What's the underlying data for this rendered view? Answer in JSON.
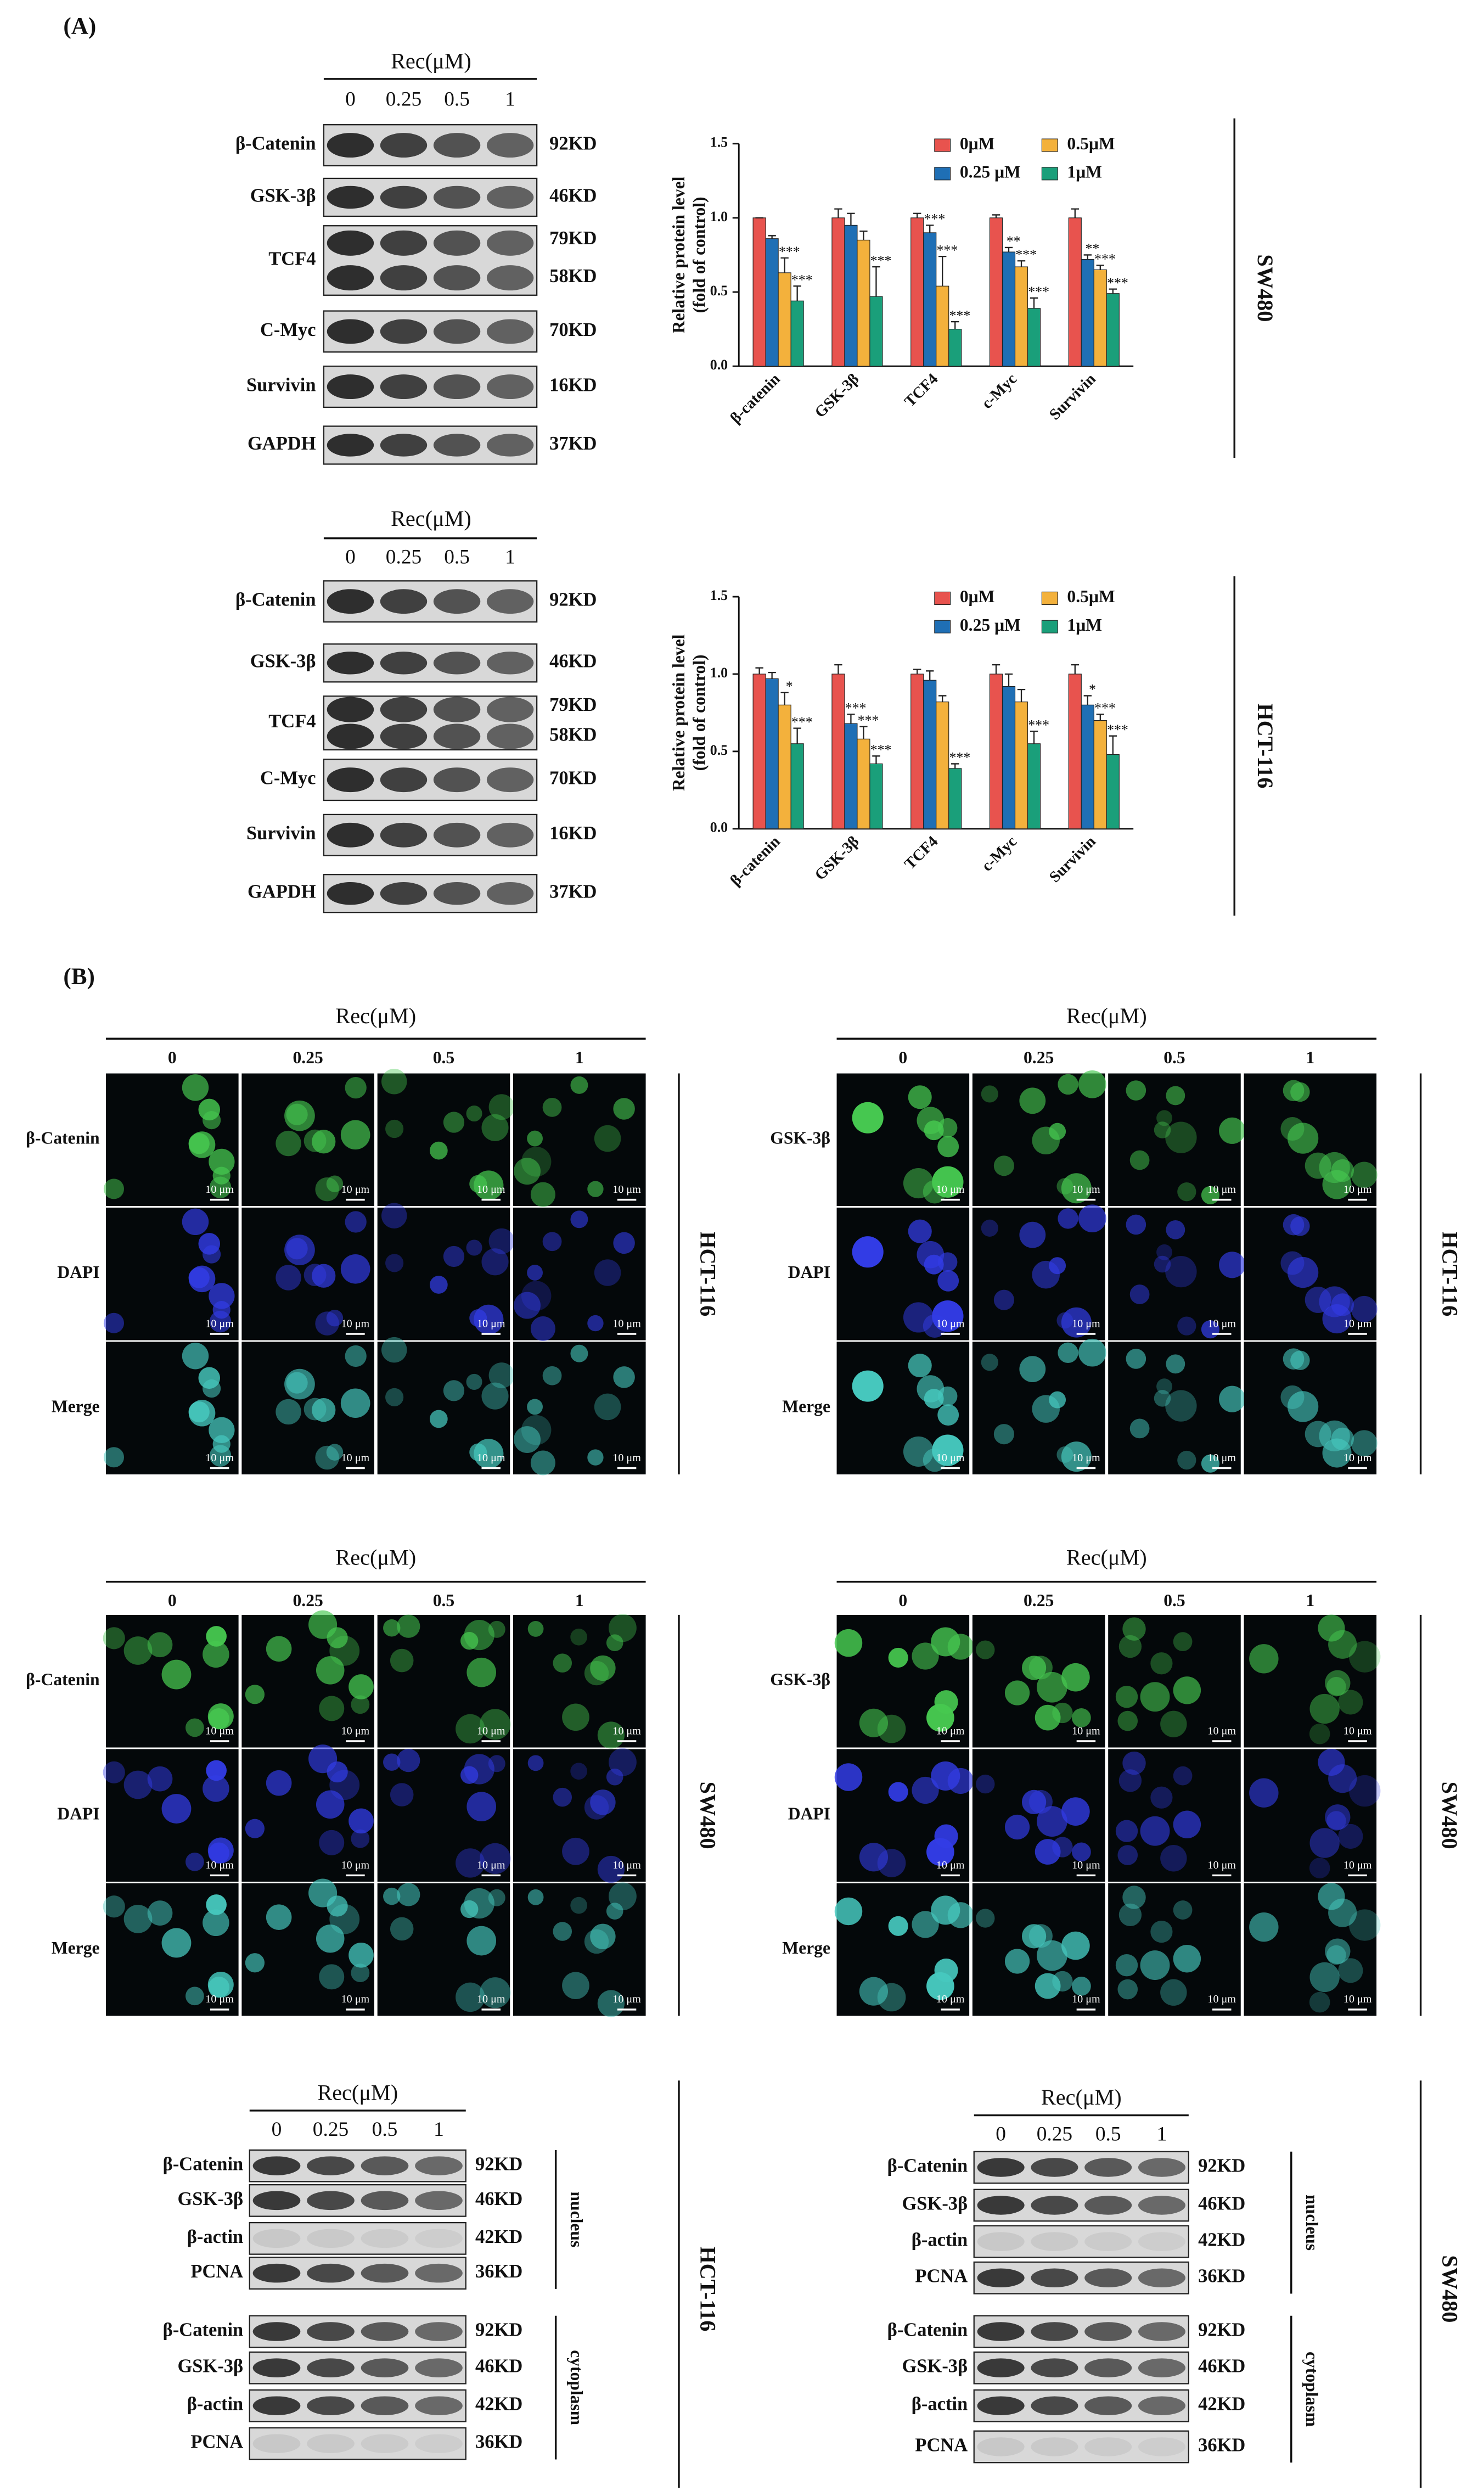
{
  "panel_labels": {
    "a": "(A)",
    "b": "(B)"
  },
  "panel_a": {
    "blots": [
      {
        "cell_line": "SW480",
        "treatment": "Rec(μM)",
        "doses": [
          "0",
          "0.25",
          "0.5",
          "1"
        ],
        "rows": [
          {
            "protein": "β-Catenin",
            "sizes": [
              "92KD"
            ]
          },
          {
            "protein": "GSK-3β",
            "sizes": [
              "46KD"
            ]
          },
          {
            "protein": "TCF4",
            "sizes": [
              "79KD",
              "58KD"
            ]
          },
          {
            "protein": "C-Myc",
            "sizes": [
              "70KD"
            ]
          },
          {
            "protein": "Survivin",
            "sizes": [
              "16KD"
            ]
          },
          {
            "protein": "GAPDH",
            "sizes": [
              "37KD"
            ]
          }
        ]
      },
      {
        "cell_line": "HCT-116",
        "treatment": "Rec(μM)",
        "doses": [
          "0",
          "0.25",
          "0.5",
          "1"
        ],
        "rows": [
          {
            "protein": "β-Catenin",
            "sizes": [
              "92KD"
            ]
          },
          {
            "protein": "GSK-3β",
            "sizes": [
              "46KD"
            ]
          },
          {
            "protein": "TCF4",
            "sizes": [
              "79KD",
              "58KD"
            ]
          },
          {
            "protein": "C-Myc",
            "sizes": [
              "70KD"
            ]
          },
          {
            "protein": "Survivin",
            "sizes": [
              "16KD"
            ]
          },
          {
            "protein": "GAPDH",
            "sizes": [
              "37KD"
            ]
          }
        ]
      }
    ]
  },
  "chart_data": [
    {
      "type": "bar",
      "ylabel": [
        "Relative protein level",
        "(fold of control)"
      ],
      "categories": [
        "β-catenin",
        "GSK-3β",
        "TCF4",
        "c-Myc",
        "Survivin"
      ],
      "series": [
        {
          "name": "0μM",
          "color": "#e8534e",
          "values": [
            1.0,
            1.0,
            1.0,
            1.0,
            1.0
          ],
          "errors": [
            0.0,
            0.06,
            0.03,
            0.02,
            0.06
          ],
          "significance": [
            null,
            null,
            null,
            null,
            null
          ]
        },
        {
          "name": "0.25 μM",
          "color": "#1f6fb5",
          "values": [
            0.86,
            0.95,
            0.9,
            0.77,
            0.72
          ],
          "errors": [
            0.02,
            0.08,
            0.05,
            0.03,
            0.03
          ],
          "significance": [
            null,
            null,
            "***",
            "**",
            "**"
          ]
        },
        {
          "name": "0.5μM",
          "color": "#f3b13c",
          "values": [
            0.63,
            0.85,
            0.54,
            0.67,
            0.65
          ],
          "errors": [
            0.1,
            0.06,
            0.2,
            0.04,
            0.03
          ],
          "significance": [
            "***",
            null,
            "***",
            "***",
            "***"
          ]
        },
        {
          "name": "1μM",
          "color": "#1a9f7a",
          "values": [
            0.44,
            0.47,
            0.25,
            0.39,
            0.49
          ],
          "errors": [
            0.1,
            0.2,
            0.05,
            0.07,
            0.03
          ],
          "significance": [
            "***",
            "***",
            "***",
            "***",
            "***"
          ]
        }
      ],
      "ylim": [
        0,
        1.5
      ],
      "yticks": [
        {
          "value": 0,
          "label": "0.0"
        },
        0.5,
        {
          "value": 1,
          "label": "1.0"
        },
        1.5
      ]
    },
    {
      "type": "bar",
      "ylabel": [
        "Relative protein level",
        "(fold of control)"
      ],
      "categories": [
        "β-catenin",
        "GSK-3β",
        "TCF4",
        "c-Myc",
        "Survivin"
      ],
      "series": [
        {
          "name": "0μM",
          "color": "#e8534e",
          "values": [
            1.0,
            1.0,
            1.0,
            1.0,
            1.0
          ],
          "errors": [
            0.04,
            0.06,
            0.03,
            0.06,
            0.06
          ],
          "significance": [
            null,
            null,
            null,
            null,
            null
          ]
        },
        {
          "name": "0.25 μM",
          "color": "#1f6fb5",
          "values": [
            0.97,
            0.68,
            0.96,
            0.92,
            0.8
          ],
          "errors": [
            0.04,
            0.06,
            0.06,
            0.08,
            0.06
          ],
          "significance": [
            null,
            "***",
            null,
            null,
            "*"
          ]
        },
        {
          "name": "0.5μM",
          "color": "#f3b13c",
          "values": [
            0.8,
            0.58,
            0.82,
            0.82,
            0.7
          ],
          "errors": [
            0.08,
            0.08,
            0.04,
            0.08,
            0.04
          ],
          "significance": [
            "*",
            "***",
            null,
            null,
            "***"
          ]
        },
        {
          "name": "1μM",
          "color": "#1a9f7a",
          "values": [
            0.55,
            0.42,
            0.39,
            0.55,
            0.48
          ],
          "errors": [
            0.1,
            0.05,
            0.03,
            0.08,
            0.12
          ],
          "significance": [
            "***",
            "***",
            "***",
            "***",
            "***"
          ]
        }
      ],
      "ylim": [
        0,
        1.5
      ],
      "yticks": [
        {
          "value": 0,
          "label": "0.0"
        },
        0.5,
        {
          "value": 1,
          "label": "1.0"
        },
        1.5
      ]
    }
  ],
  "panel_b": {
    "scale_bar": "10 μm",
    "grids": [
      {
        "cell_line": "HCT-116",
        "treatment": "Rec(μM)",
        "doses": [
          "0",
          "0.25",
          "0.5",
          "1"
        ],
        "rows": [
          "β-Catenin",
          "DAPI",
          "Merge"
        ]
      },
      {
        "cell_line": "HCT-116",
        "treatment": "Rec(μM)",
        "doses": [
          "0",
          "0.25",
          "0.5",
          "1"
        ],
        "rows": [
          "GSK-3β",
          "DAPI",
          "Merge"
        ]
      },
      {
        "cell_line": "SW480",
        "treatment": "Rec(μM)",
        "doses": [
          "0",
          "0.25",
          "0.5",
          "1"
        ],
        "rows": [
          "β-Catenin",
          "DAPI",
          "Merge"
        ]
      },
      {
        "cell_line": "SW480",
        "treatment": "Rec(μM)",
        "doses": [
          "0",
          "0.25",
          "0.5",
          "1"
        ],
        "rows": [
          "GSK-3β",
          "DAPI",
          "Merge"
        ]
      }
    ]
  },
  "fractionation": {
    "blots": [
      {
        "cell_line": "HCT-116",
        "treatment": "Rec(μM)",
        "doses": [
          "0",
          "0.25",
          "0.5",
          "1"
        ],
        "fractions": [
          {
            "name": "nucleus",
            "rows": [
              {
                "protein": "β-Catenin",
                "size": "92KD"
              },
              {
                "protein": "GSK-3β",
                "size": "46KD"
              },
              {
                "protein": "β-actin",
                "size": "42KD"
              },
              {
                "protein": "PCNA",
                "size": "36KD"
              }
            ]
          },
          {
            "name": "cytoplasm",
            "rows": [
              {
                "protein": "β-Catenin",
                "size": "92KD"
              },
              {
                "protein": "GSK-3β",
                "size": "46KD"
              },
              {
                "protein": "β-actin",
                "size": "42KD"
              },
              {
                "protein": "PCNA",
                "size": "36KD"
              }
            ]
          }
        ]
      },
      {
        "cell_line": "SW480",
        "treatment": "Rec(μM)",
        "doses": [
          "0",
          "0.25",
          "0.5",
          "1"
        ],
        "fractions": [
          {
            "name": "nucleus",
            "rows": [
              {
                "protein": "β-Catenin",
                "size": "92KD"
              },
              {
                "protein": "GSK-3β",
                "size": "46KD"
              },
              {
                "protein": "β-actin",
                "size": "42KD"
              },
              {
                "protein": "PCNA",
                "size": "36KD"
              }
            ]
          },
          {
            "name": "cytoplasm",
            "rows": [
              {
                "protein": "β-Catenin",
                "size": "92KD"
              },
              {
                "protein": "GSK-3β",
                "size": "46KD"
              },
              {
                "protein": "β-actin",
                "size": "42KD"
              },
              {
                "protein": "PCNA",
                "size": "36KD"
              }
            ]
          }
        ]
      }
    ]
  }
}
